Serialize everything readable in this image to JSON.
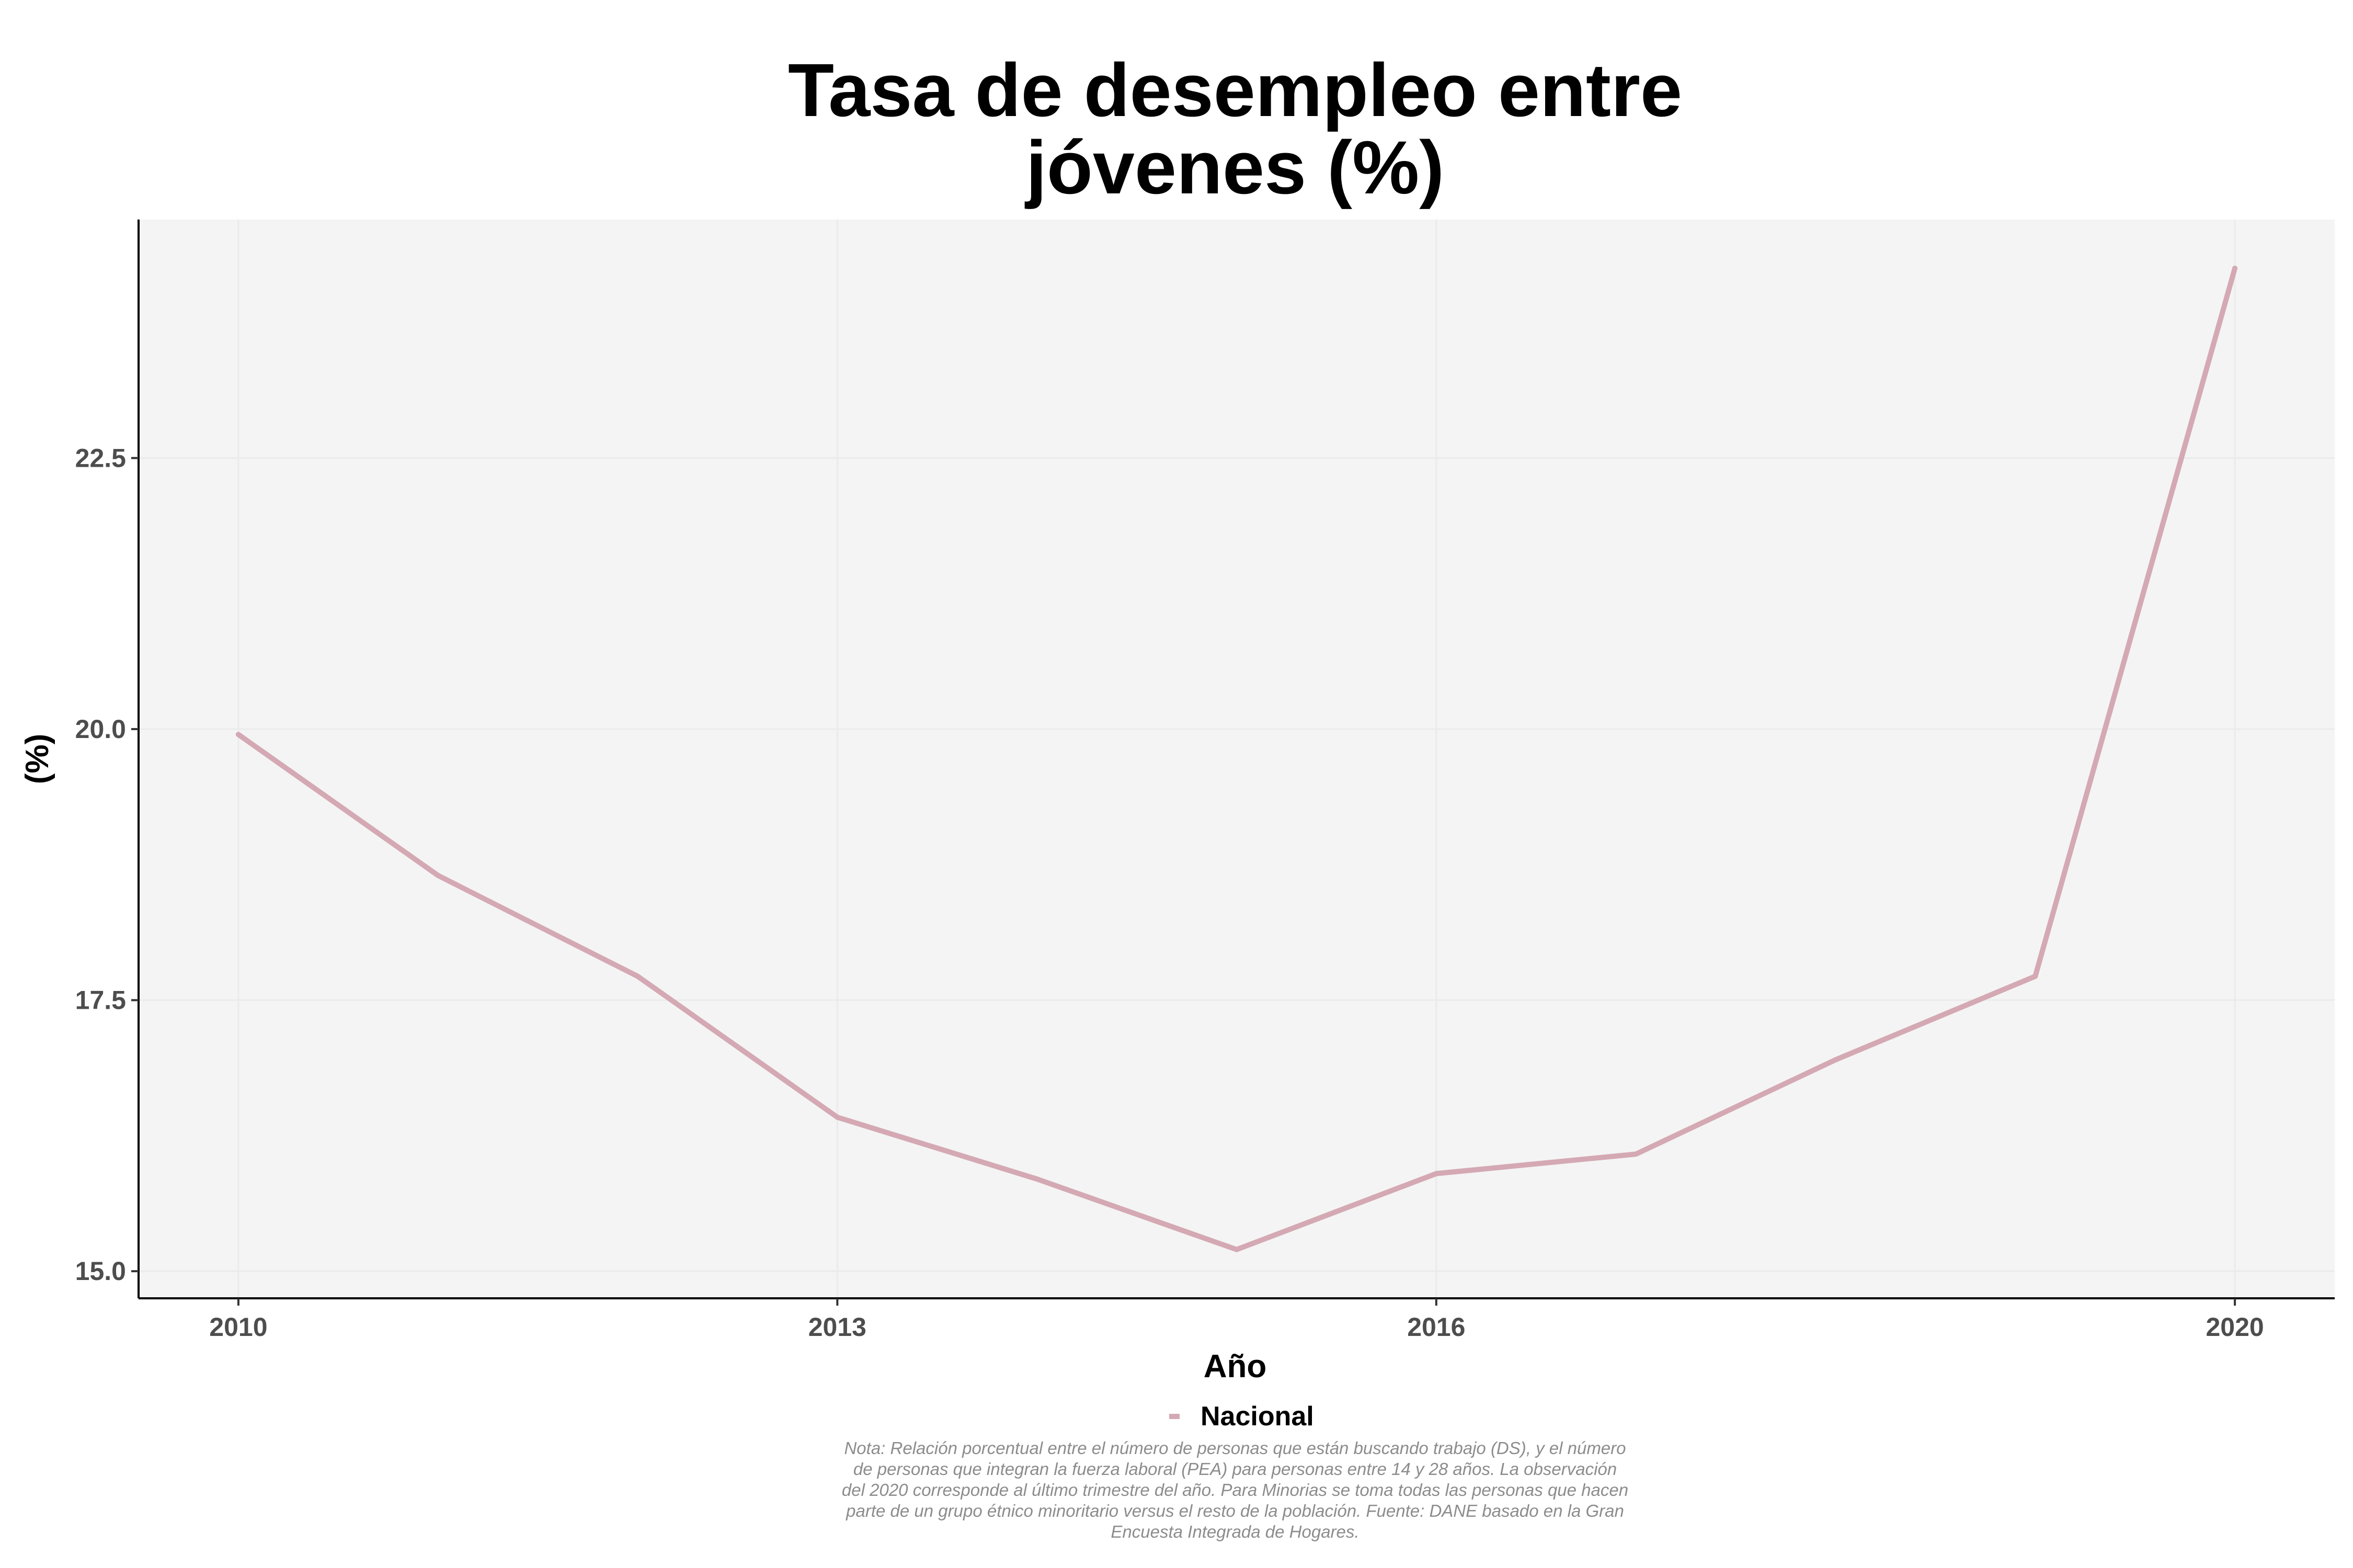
{
  "chart_data": {
    "type": "line",
    "title_lines": [
      "Tasa de desempleo entre",
      "jóvenes (%)"
    ],
    "xlabel": "Año",
    "ylabel": "(%)",
    "x": [
      2010,
      2011,
      2012,
      2013,
      2014,
      2015,
      2016,
      2017,
      2018,
      2019,
      2020
    ],
    "series": [
      {
        "name": "Nacional",
        "color": "#d4a9b4",
        "values": [
          19.95,
          18.65,
          17.72,
          16.42,
          15.85,
          15.2,
          15.9,
          16.08,
          16.95,
          17.72,
          24.25
        ]
      }
    ],
    "xticks": [
      2010,
      2013,
      2016,
      2020
    ],
    "yticks": [
      15.0,
      17.5,
      20.0,
      22.5
    ],
    "ytick_labels": [
      "15.0",
      "17.5",
      "20.0",
      "22.5"
    ],
    "xlim": [
      2009.5,
      2020.5
    ],
    "ylim": [
      14.75,
      24.7
    ],
    "grid": true,
    "legend_position": "bottom",
    "note_lines": [
      "Nota: Relación porcentual entre el número de personas que están buscando trabajo (DS), y el número",
      "de personas que integran la fuerza laboral (PEA) para personas entre 14 y 28 años. La observación",
      "del 2020 corresponde al último trimestre del año. Para Minorias se toma todas las personas que hacen",
      "parte de un grupo étnico minoritario versus el resto de la población. Fuente: DANE basado en la Gran",
      "Encuesta Integrada de Hogares."
    ]
  }
}
